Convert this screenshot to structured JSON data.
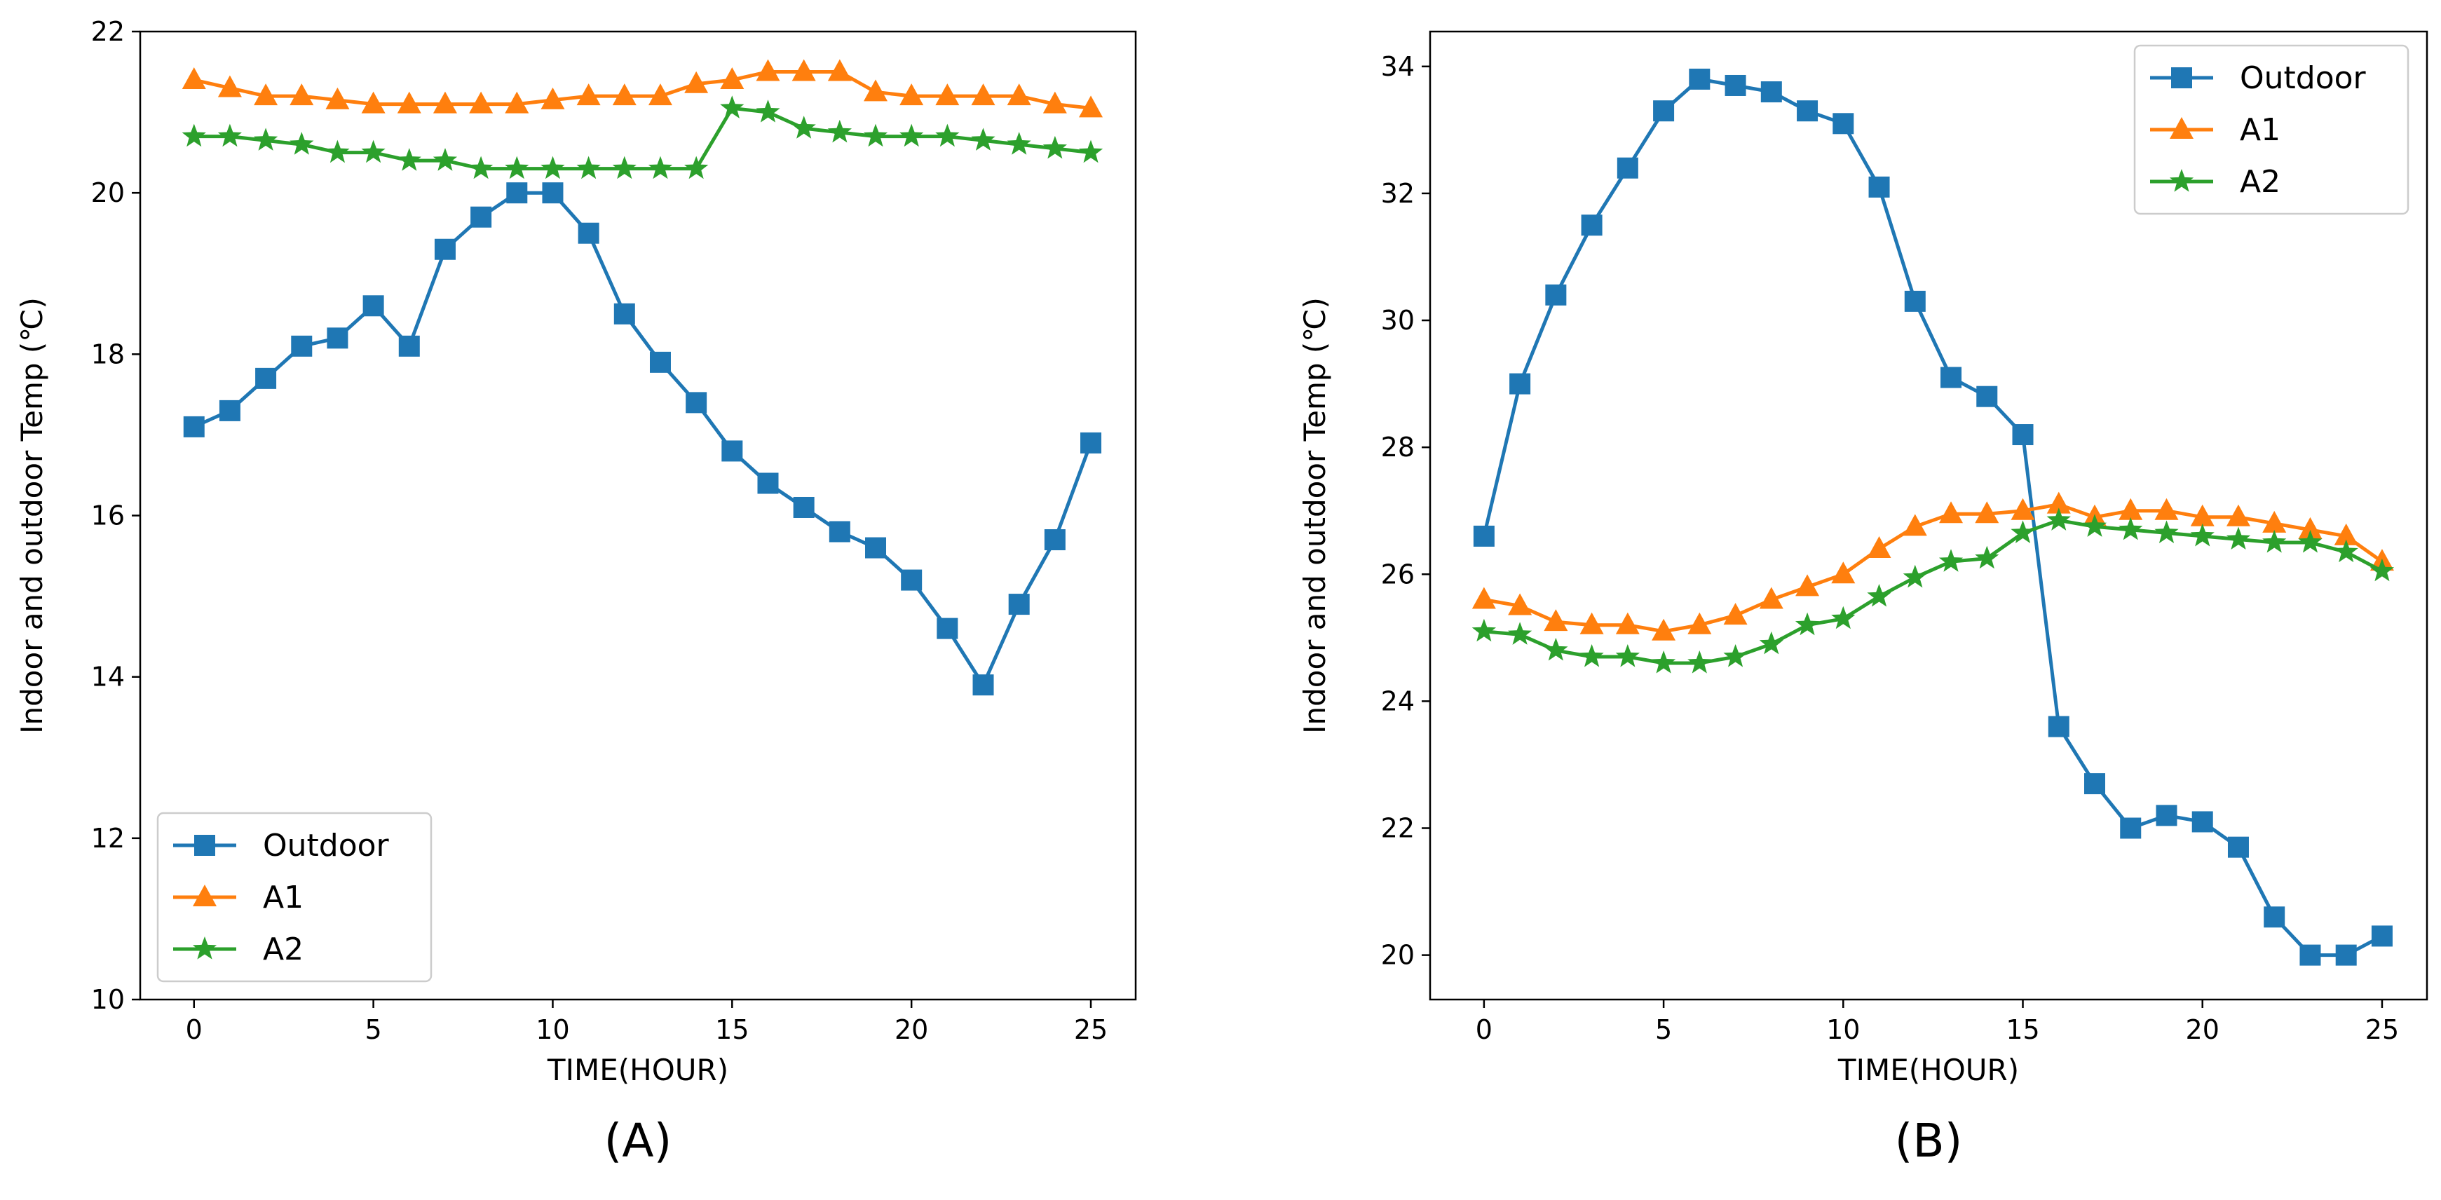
{
  "chart_data": [
    {
      "type": "line",
      "panel_label": "(A)",
      "xlabel": "TIME(HOUR)",
      "ylabel": "Indoor and outdoor Temp (℃)",
      "xlim": [
        -1.5,
        26.25
      ],
      "ylim": [
        10,
        22
      ],
      "xticks": [
        0,
        5,
        10,
        15,
        20,
        25
      ],
      "yticks": [
        10,
        12,
        14,
        16,
        18,
        20,
        22
      ],
      "legend_position": "lower-left",
      "x": [
        0,
        1,
        2,
        3,
        4,
        5,
        6,
        7,
        8,
        9,
        10,
        11,
        12,
        13,
        14,
        15,
        16,
        17,
        18,
        19,
        20,
        21,
        22,
        23,
        24,
        25
      ],
      "series": [
        {
          "name": "Outdoor",
          "color": "#1f77b4",
          "marker": "square",
          "values": [
            17.1,
            17.3,
            17.7,
            18.1,
            18.2,
            18.6,
            18.1,
            19.3,
            19.7,
            20.0,
            20.0,
            19.5,
            18.5,
            17.9,
            17.4,
            16.8,
            16.4,
            16.1,
            15.8,
            15.6,
            15.2,
            14.6,
            13.9,
            14.9,
            15.7,
            16.9
          ]
        },
        {
          "name": "A1",
          "color": "#ff7f0e",
          "marker": "triangle",
          "values": [
            21.4,
            21.3,
            21.2,
            21.2,
            21.15,
            21.1,
            21.1,
            21.1,
            21.1,
            21.1,
            21.15,
            21.2,
            21.2,
            21.2,
            21.35,
            21.4,
            21.5,
            21.5,
            21.5,
            21.25,
            21.2,
            21.2,
            21.2,
            21.2,
            21.1,
            21.05
          ]
        },
        {
          "name": "A2",
          "color": "#2ca02c",
          "marker": "star",
          "values": [
            20.7,
            20.7,
            20.65,
            20.6,
            20.5,
            20.5,
            20.4,
            20.4,
            20.3,
            20.3,
            20.3,
            20.3,
            20.3,
            20.3,
            20.3,
            21.05,
            21.0,
            20.8,
            20.75,
            20.7,
            20.7,
            20.7,
            20.65,
            20.6,
            20.55,
            20.5
          ]
        }
      ]
    },
    {
      "type": "line",
      "panel_label": "(B)",
      "xlabel": "TIME(HOUR)",
      "ylabel": "Indoor and outdoor Temp (℃)",
      "xlim": [
        -1.5,
        26.25
      ],
      "ylim": [
        19.3,
        34.55
      ],
      "xticks": [
        0,
        5,
        10,
        15,
        20,
        25
      ],
      "yticks": [
        20,
        22,
        24,
        26,
        28,
        30,
        32,
        34
      ],
      "legend_position": "upper-right",
      "x": [
        0,
        1,
        2,
        3,
        4,
        5,
        6,
        7,
        8,
        9,
        10,
        11,
        12,
        13,
        14,
        15,
        16,
        17,
        18,
        19,
        20,
        21,
        22,
        23,
        24,
        25
      ],
      "series": [
        {
          "name": "Outdoor",
          "color": "#1f77b4",
          "marker": "square",
          "values": [
            26.6,
            29.0,
            30.4,
            31.5,
            32.4,
            33.3,
            33.8,
            33.7,
            33.6,
            33.3,
            33.1,
            32.1,
            30.3,
            29.1,
            28.8,
            28.2,
            23.6,
            22.7,
            22.0,
            22.2,
            22.1,
            21.7,
            20.6,
            20.0,
            20.0,
            20.3
          ]
        },
        {
          "name": "A1",
          "color": "#ff7f0e",
          "marker": "triangle",
          "values": [
            25.6,
            25.5,
            25.25,
            25.2,
            25.2,
            25.1,
            25.2,
            25.35,
            25.6,
            25.8,
            26.0,
            26.4,
            26.75,
            26.95,
            26.95,
            27.0,
            27.1,
            26.9,
            27.0,
            27.0,
            26.9,
            26.9,
            26.8,
            26.7,
            26.6,
            26.2
          ]
        },
        {
          "name": "A2",
          "color": "#2ca02c",
          "marker": "star",
          "values": [
            25.1,
            25.05,
            24.8,
            24.7,
            24.7,
            24.6,
            24.6,
            24.7,
            24.9,
            25.2,
            25.3,
            25.65,
            25.95,
            26.2,
            26.25,
            26.65,
            26.85,
            26.75,
            26.7,
            26.65,
            26.6,
            26.55,
            26.5,
            26.5,
            26.35,
            26.05
          ]
        }
      ]
    }
  ]
}
